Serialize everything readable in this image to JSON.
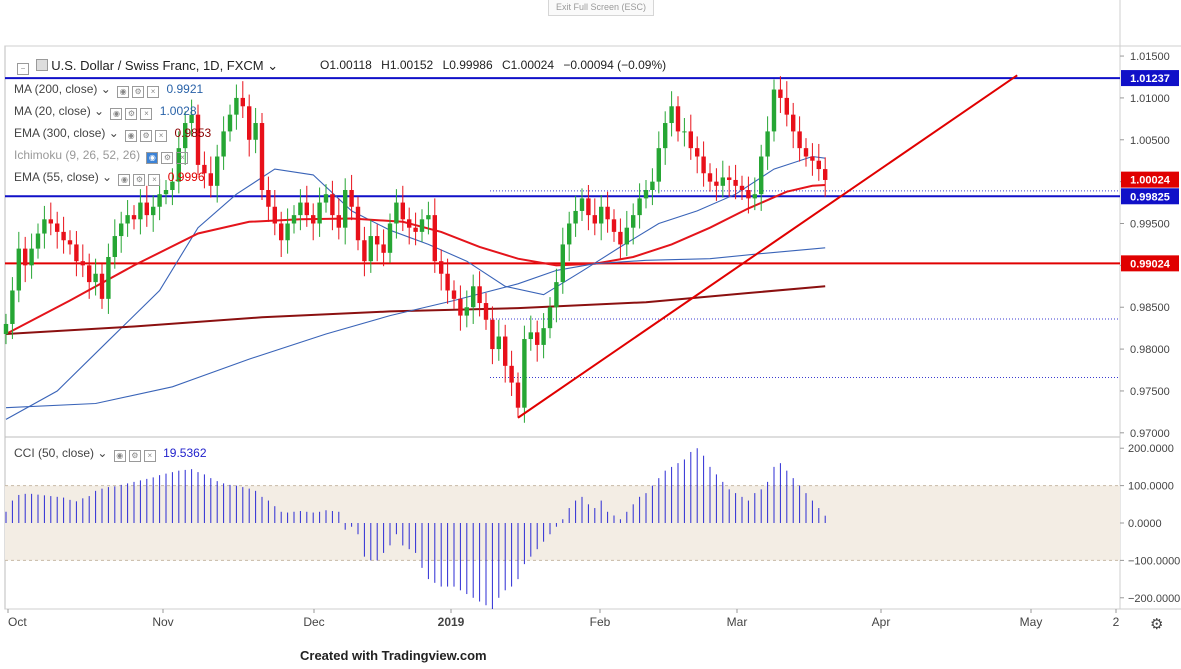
{
  "toolbar": {
    "exit_full_screen": "Exit Full Screen (ESC)"
  },
  "header": {
    "symbol_title": "U.S. Dollar / Swiss Franc, 1D, FXCM",
    "open": "O1.00118",
    "high": "H1.00152",
    "low": "L0.99986",
    "close": "C1.00024",
    "change": "−0.00094 (−0.09%)"
  },
  "indicators": [
    {
      "label": "MA (200, close)",
      "value": "0.9921",
      "color": "#2962a8"
    },
    {
      "label": "MA (20, close)",
      "value": "1.0028",
      "color": "#2962a8"
    },
    {
      "label": "EMA (300, close)",
      "value": "0.9853",
      "color": "#8b0000"
    },
    {
      "label": "Ichimoku (9, 26, 52, 26)",
      "value": "",
      "color": "#888888"
    },
    {
      "label": "EMA (55, close)",
      "value": "0.9996",
      "color": "#e00000"
    }
  ],
  "cci_legend": {
    "label": "CCI (50, close)",
    "value": "19.5362",
    "color": "#2222cc"
  },
  "footer_text": "Created with Tradingview.com",
  "colors": {
    "bull": "#26a634",
    "bear": "#e8101a",
    "ma20": "#3a64b8",
    "ema55": "#e4141b",
    "ema300": "#8b1010",
    "hline_blue": "#1010c8",
    "hline_red": "#e00000",
    "trend": "#e00000",
    "cci": "#2b2bd4",
    "cci_band": "#f3ede4"
  },
  "chart_data": [
    {
      "type": "candlestick",
      "title": "U.S. Dollar / Swiss Franc, 1D, FXCM",
      "x_ticks": [
        "Oct",
        "Nov",
        "Dec",
        "2019",
        "Feb",
        "Mar",
        "Apr",
        "May",
        "2"
      ],
      "y_ticks": [
        "1.01500",
        "1.01000",
        "1.00500",
        "1.00000",
        "0.99500",
        "0.99000",
        "0.98500",
        "0.98000",
        "0.97500",
        "0.97000"
      ],
      "ylim": [
        0.9695,
        1.0162
      ],
      "price_labels": [
        {
          "value": 1.01237,
          "text": "1.01237",
          "color": "#1010c8"
        },
        {
          "value": 1.00024,
          "text": "1.00024",
          "color": "#e00000"
        },
        {
          "value": 0.99825,
          "text": "0.99825",
          "color": "#1010c8"
        },
        {
          "value": 0.99024,
          "text": "0.99024",
          "color": "#e00000"
        }
      ],
      "horizontal_lines": [
        {
          "value": 1.01237,
          "color": "#1010c8"
        },
        {
          "value": 0.99825,
          "color": "#1010c8"
        },
        {
          "value": 0.99024,
          "color": "#e00000"
        }
      ],
      "dotted_lines": [
        0.9989,
        0.9836,
        0.9766
      ],
      "trendline": {
        "from": {
          "bar": 80,
          "value": 0.9718
        },
        "to": {
          "bar": 158,
          "value": 1.0127
        }
      },
      "closes": [
        0.983,
        0.987,
        0.992,
        0.99,
        0.992,
        0.9938,
        0.9955,
        0.995,
        0.994,
        0.993,
        0.9925,
        0.9905,
        0.99,
        0.988,
        0.989,
        0.986,
        0.991,
        0.9935,
        0.995,
        0.996,
        0.9955,
        0.9975,
        0.996,
        0.997,
        0.9985,
        0.999,
        1.0,
        1.004,
        1.007,
        1.008,
        1.002,
        1.001,
        0.9995,
        1.003,
        1.006,
        1.008,
        1.01,
        1.009,
        1.005,
        1.007,
        0.999,
        0.997,
        0.995,
        0.993,
        0.995,
        0.996,
        0.9975,
        0.996,
        0.995,
        0.9975,
        0.9985,
        0.996,
        0.9945,
        0.999,
        0.997,
        0.993,
        0.9905,
        0.9935,
        0.9925,
        0.9915,
        0.995,
        0.9975,
        0.9955,
        0.9945,
        0.994,
        0.9955,
        0.996,
        0.9905,
        0.989,
        0.987,
        0.986,
        0.984,
        0.985,
        0.9875,
        0.9855,
        0.9835,
        0.98,
        0.9815,
        0.978,
        0.976,
        0.973,
        0.9812,
        0.982,
        0.9805,
        0.9825,
        0.985,
        0.988,
        0.9925,
        0.995,
        0.9965,
        0.998,
        0.996,
        0.995,
        0.997,
        0.9955,
        0.994,
        0.9925,
        0.9945,
        0.996,
        0.998,
        0.999,
        1.0,
        1.004,
        1.007,
        1.009,
        1.006,
        1.006,
        1.004,
        1.003,
        1.001,
        1.0,
        0.9995,
        1.0005,
        1.0002,
        0.9995,
        0.999,
        0.998,
        0.9985,
        1.003,
        1.006,
        1.011,
        1.01,
        1.008,
        1.006,
        1.004,
        1.003,
        1.0025,
        1.0015,
        1.0002
      ],
      "series": [
        {
          "name": "MA (20, close)",
          "color": "#3a64b8",
          "points": [
            [
              0,
              0.9716
            ],
            [
              8,
              0.975
            ],
            [
              16,
              0.981
            ],
            [
              24,
              0.987
            ],
            [
              30,
              0.9945
            ],
            [
              36,
              0.9985
            ],
            [
              42,
              1.0015
            ],
            [
              48,
              1.0008
            ],
            [
              54,
              0.9965
            ],
            [
              60,
              0.9942
            ],
            [
              66,
              0.9925
            ],
            [
              72,
              0.9905
            ],
            [
              78,
              0.9875
            ],
            [
              84,
              0.9865
            ],
            [
              90,
              0.9893
            ],
            [
              96,
              0.9922
            ],
            [
              102,
              0.995
            ],
            [
              108,
              0.9965
            ],
            [
              114,
              0.9985
            ],
            [
              120,
              1.0015
            ],
            [
              126,
              1.003
            ],
            [
              128,
              1.0028
            ]
          ]
        },
        {
          "name": "EMA (55, close)",
          "color": "#e4141b",
          "points": [
            [
              0,
              0.9818
            ],
            [
              10,
              0.9858
            ],
            [
              20,
              0.99
            ],
            [
              30,
              0.9938
            ],
            [
              38,
              0.9952
            ],
            [
              46,
              0.9955
            ],
            [
              54,
              0.9956
            ],
            [
              62,
              0.9952
            ],
            [
              68,
              0.994
            ],
            [
              74,
              0.9922
            ],
            [
              80,
              0.9908
            ],
            [
              86,
              0.99
            ],
            [
              92,
              0.9902
            ],
            [
              98,
              0.991
            ],
            [
              104,
              0.9925
            ],
            [
              110,
              0.9945
            ],
            [
              116,
              0.9968
            ],
            [
              122,
              0.9988
            ],
            [
              126,
              0.9995
            ],
            [
              128,
              0.9996
            ]
          ]
        },
        {
          "name": "EMA (300, close)",
          "color": "#8b1010",
          "points": [
            [
              0,
              0.9818
            ],
            [
              20,
              0.9827
            ],
            [
              40,
              0.9838
            ],
            [
              60,
              0.9845
            ],
            [
              80,
              0.9849
            ],
            [
              100,
              0.9856
            ],
            [
              116,
              0.9867
            ],
            [
              128,
              0.9875
            ]
          ]
        },
        {
          "name": "MA (200, close)",
          "color": "#3a64b8",
          "points": [
            [
              0,
              0.973
            ],
            [
              14,
              0.9735
            ],
            [
              26,
              0.9755
            ],
            [
              38,
              0.9788
            ],
            [
              50,
              0.9818
            ],
            [
              60,
              0.984
            ],
            [
              70,
              0.9858
            ],
            [
              80,
              0.9878
            ],
            [
              86,
              0.9894
            ],
            [
              92,
              0.9902
            ],
            [
              100,
              0.9906
            ],
            [
              110,
              0.9908
            ],
            [
              118,
              0.9914
            ],
            [
              128,
              0.9921
            ]
          ]
        }
      ]
    },
    {
      "type": "bar",
      "title": "CCI (50, close)",
      "y_ticks": [
        "200.0000",
        "100.0000",
        "0.0000",
        "-100.0000",
        "-200.0000"
      ],
      "ylim": [
        -230,
        230
      ],
      "band": [
        -100,
        100
      ],
      "values": [
        30,
        60,
        75,
        78,
        78,
        76,
        74,
        72,
        70,
        68,
        62,
        58,
        66,
        72,
        86,
        92,
        96,
        98,
        102,
        106,
        110,
        114,
        118,
        122,
        128,
        132,
        136,
        140,
        142,
        144,
        136,
        130,
        120,
        112,
        106,
        102,
        100,
        96,
        92,
        86,
        70,
        60,
        45,
        30,
        28,
        30,
        32,
        30,
        28,
        30,
        34,
        32,
        30,
        -18,
        -10,
        -30,
        -90,
        -100,
        -100,
        -80,
        -60,
        -30,
        -60,
        -70,
        -80,
        -120,
        -150,
        -160,
        -170,
        -170,
        -170,
        -180,
        -190,
        -200,
        -210,
        -220,
        -230,
        -200,
        -180,
        -170,
        -150,
        -110,
        -90,
        -70,
        -50,
        -30,
        -10,
        10,
        40,
        60,
        70,
        50,
        40,
        60,
        30,
        20,
        10,
        30,
        50,
        70,
        80,
        100,
        120,
        140,
        150,
        160,
        170,
        190,
        200,
        180,
        150,
        130,
        110,
        90,
        80,
        70,
        60,
        80,
        90,
        110,
        150,
        160,
        140,
        120,
        100,
        80,
        60,
        40,
        19.5362
      ]
    }
  ]
}
